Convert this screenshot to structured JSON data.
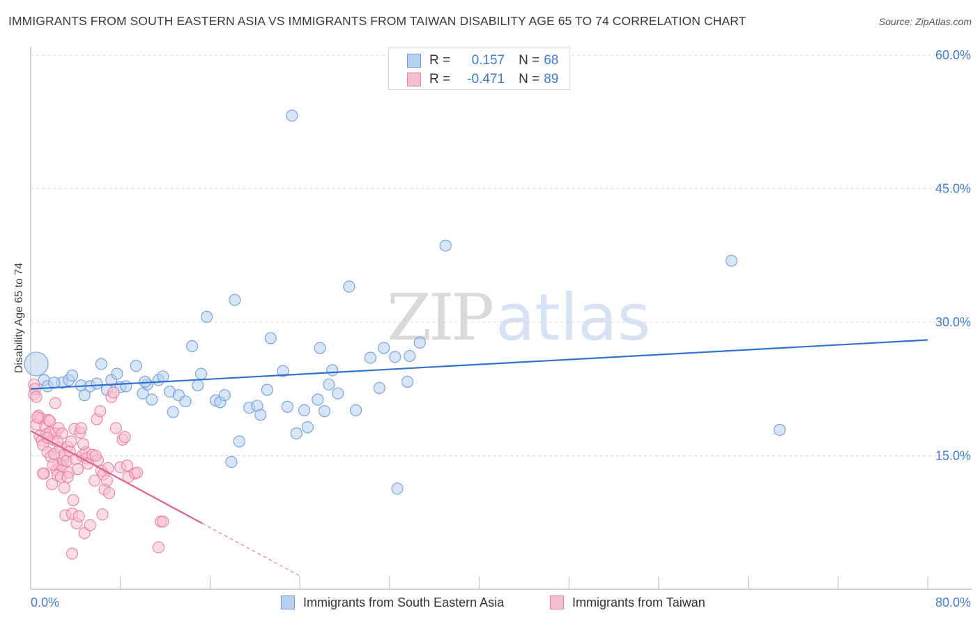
{
  "header": {
    "title": "IMMIGRANTS FROM SOUTH EASTERN ASIA VS IMMIGRANTS FROM TAIWAN DISABILITY AGE 65 TO 74 CORRELATION CHART",
    "source": "Source: ZipAtlas.com"
  },
  "watermark": {
    "zip": "ZIP",
    "atlas": "atlas"
  },
  "legend": {
    "r_label": "R =",
    "n_label": "N =",
    "entries": [
      {
        "r": "0.157",
        "n": "68"
      },
      {
        "r": "-0.471",
        "n": "89"
      }
    ]
  },
  "colors": {
    "blue_fill": "#b8d0f0",
    "blue_stroke": "#6d9ee0",
    "blue_line": "#2f72d0",
    "pink_fill": "#f6bfd0",
    "pink_stroke": "#ea7fa3",
    "pink_line": "#e0608f",
    "tick_text": "#3e7bd6",
    "grid": "#d9d9d9"
  },
  "chart_data": {
    "type": "scatter",
    "title": "IMMIGRANTS FROM SOUTH EASTERN ASIA VS IMMIGRANTS FROM TAIWAN DISABILITY AGE 65 TO 74 CORRELATION CHART",
    "xlabel": "",
    "ylabel": "Disability Age 65 to 74",
    "xlim": [
      0,
      80
    ],
    "ylim": [
      0,
      60
    ],
    "x_tick_labels": [
      "0.0%",
      "80.0%"
    ],
    "y_ticks": [
      15,
      30,
      45,
      60
    ],
    "y_tick_labels": [
      "15.0%",
      "30.0%",
      "45.0%",
      "60.0%"
    ],
    "grid": true,
    "legend_position": "top-center",
    "series": [
      {
        "name": "Immigrants from South Eastern Asia",
        "color": "#6d9ee0",
        "r": 0.157,
        "n": 68,
        "trend": {
          "x": [
            0,
            80
          ],
          "y": [
            22.5,
            28.0
          ],
          "dashed_to": null
        },
        "points": [
          [
            0.5,
            25.3
          ],
          [
            1.2,
            23.5
          ],
          [
            1.5,
            22.8
          ],
          [
            2.8,
            23.2
          ],
          [
            3.4,
            23.5
          ],
          [
            3.7,
            24.0
          ],
          [
            4.5,
            22.9
          ],
          [
            4.8,
            21.8
          ],
          [
            5.3,
            22.8
          ],
          [
            5.9,
            23.1
          ],
          [
            6.3,
            25.3
          ],
          [
            6.8,
            22.4
          ],
          [
            7.2,
            23.5
          ],
          [
            7.7,
            24.2
          ],
          [
            8.0,
            22.7
          ],
          [
            8.5,
            22.8
          ],
          [
            9.4,
            25.1
          ],
          [
            10.0,
            22.0
          ],
          [
            10.4,
            23.0
          ],
          [
            10.8,
            21.3
          ],
          [
            11.4,
            23.5
          ],
          [
            11.8,
            23.9
          ],
          [
            12.4,
            22.2
          ],
          [
            12.7,
            19.9
          ],
          [
            13.2,
            21.8
          ],
          [
            13.8,
            21.1
          ],
          [
            14.4,
            27.3
          ],
          [
            14.9,
            22.9
          ],
          [
            15.2,
            24.2
          ],
          [
            15.7,
            30.6
          ],
          [
            16.5,
            21.2
          ],
          [
            16.9,
            21.0
          ],
          [
            17.3,
            21.8
          ],
          [
            18.2,
            32.5
          ],
          [
            18.6,
            16.6
          ],
          [
            19.5,
            20.4
          ],
          [
            20.2,
            20.6
          ],
          [
            20.5,
            19.6
          ],
          [
            21.1,
            22.4
          ],
          [
            21.4,
            28.2
          ],
          [
            22.5,
            24.5
          ],
          [
            22.9,
            20.5
          ],
          [
            23.3,
            53.2
          ],
          [
            23.7,
            17.5
          ],
          [
            24.4,
            20.1
          ],
          [
            24.7,
            18.2
          ],
          [
            25.6,
            21.3
          ],
          [
            25.8,
            27.1
          ],
          [
            26.2,
            20.0
          ],
          [
            26.6,
            23.0
          ],
          [
            26.9,
            24.6
          ],
          [
            27.4,
            22.0
          ],
          [
            28.4,
            34.0
          ],
          [
            29.0,
            20.1
          ],
          [
            30.3,
            26.0
          ],
          [
            31.1,
            22.6
          ],
          [
            31.5,
            27.1
          ],
          [
            32.5,
            26.1
          ],
          [
            32.7,
            11.3
          ],
          [
            33.6,
            23.3
          ],
          [
            33.8,
            26.2
          ],
          [
            34.7,
            27.7
          ],
          [
            37.0,
            38.6
          ],
          [
            62.5,
            36.9
          ],
          [
            66.8,
            17.9
          ],
          [
            17.9,
            14.3
          ],
          [
            10.2,
            23.3
          ],
          [
            2.1,
            23.2
          ]
        ]
      },
      {
        "name": "Immigrants from Taiwan",
        "color": "#ea7fa3",
        "r": -0.471,
        "n": 89,
        "trend": {
          "x": [
            0,
            15.3
          ],
          "y": [
            17.8,
            7.4
          ],
          "dashed_to": [
            24.0,
            1.5
          ]
        },
        "points": [
          [
            0.3,
            23.0
          ],
          [
            0.3,
            21.9
          ],
          [
            0.4,
            22.5
          ],
          [
            0.5,
            21.6
          ],
          [
            0.5,
            18.5
          ],
          [
            0.7,
            19.5
          ],
          [
            0.8,
            17.2
          ],
          [
            0.9,
            19.2
          ],
          [
            1.0,
            16.7
          ],
          [
            1.1,
            16.2
          ],
          [
            1.2,
            13.0
          ],
          [
            1.3,
            18.3
          ],
          [
            1.4,
            17.4
          ],
          [
            1.5,
            15.4
          ],
          [
            1.6,
            19.0
          ],
          [
            1.7,
            17.6
          ],
          [
            1.8,
            14.9
          ],
          [
            1.9,
            11.8
          ],
          [
            2.0,
            16.8
          ],
          [
            2.1,
            15.2
          ],
          [
            2.2,
            17.5
          ],
          [
            2.2,
            20.9
          ],
          [
            2.3,
            13.4
          ],
          [
            2.4,
            12.8
          ],
          [
            2.5,
            18.1
          ],
          [
            2.5,
            14.1
          ],
          [
            2.6,
            15.9
          ],
          [
            2.7,
            12.6
          ],
          [
            2.8,
            17.5
          ],
          [
            2.8,
            13.8
          ],
          [
            2.9,
            14.5
          ],
          [
            3.0,
            11.4
          ],
          [
            3.0,
            15.1
          ],
          [
            3.1,
            8.3
          ],
          [
            3.2,
            14.4
          ],
          [
            3.3,
            16.0
          ],
          [
            3.4,
            13.1
          ],
          [
            3.5,
            15.5
          ],
          [
            3.6,
            16.6
          ],
          [
            3.7,
            4.0
          ],
          [
            3.7,
            8.5
          ],
          [
            3.8,
            10.0
          ],
          [
            3.9,
            18.0
          ],
          [
            4.0,
            14.6
          ],
          [
            4.1,
            7.4
          ],
          [
            4.2,
            13.5
          ],
          [
            4.3,
            8.2
          ],
          [
            4.4,
            17.6
          ],
          [
            4.5,
            18.1
          ],
          [
            4.6,
            15.0
          ],
          [
            4.8,
            6.3
          ],
          [
            4.9,
            15.4
          ],
          [
            5.0,
            14.7
          ],
          [
            5.1,
            14.1
          ],
          [
            5.3,
            7.2
          ],
          [
            5.5,
            15.1
          ],
          [
            5.7,
            12.2
          ],
          [
            5.9,
            19.1
          ],
          [
            6.0,
            14.5
          ],
          [
            6.2,
            20.0
          ],
          [
            6.3,
            13.3
          ],
          [
            6.4,
            8.4
          ],
          [
            6.5,
            12.9
          ],
          [
            6.6,
            11.2
          ],
          [
            6.8,
            12.2
          ],
          [
            6.9,
            13.6
          ],
          [
            7.0,
            10.8
          ],
          [
            7.2,
            21.6
          ],
          [
            7.4,
            22.1
          ],
          [
            7.6,
            18.1
          ],
          [
            8.0,
            13.7
          ],
          [
            8.2,
            16.8
          ],
          [
            8.4,
            17.1
          ],
          [
            8.6,
            13.9
          ],
          [
            8.7,
            12.6
          ],
          [
            9.3,
            13.0
          ],
          [
            9.5,
            13.1
          ],
          [
            11.6,
            7.6
          ],
          [
            11.8,
            7.6
          ],
          [
            11.4,
            4.7
          ],
          [
            1.5,
            17.0
          ],
          [
            2.0,
            14.0
          ],
          [
            3.3,
            12.6
          ],
          [
            4.7,
            16.3
          ],
          [
            0.6,
            19.3
          ],
          [
            1.1,
            13.0
          ],
          [
            5.8,
            15.0
          ],
          [
            1.7,
            18.9
          ],
          [
            2.4,
            16.6
          ]
        ]
      }
    ]
  },
  "bottom_legend": {
    "items": [
      {
        "label": "Immigrants from South Eastern Asia"
      },
      {
        "label": "Immigrants from Taiwan"
      }
    ]
  }
}
